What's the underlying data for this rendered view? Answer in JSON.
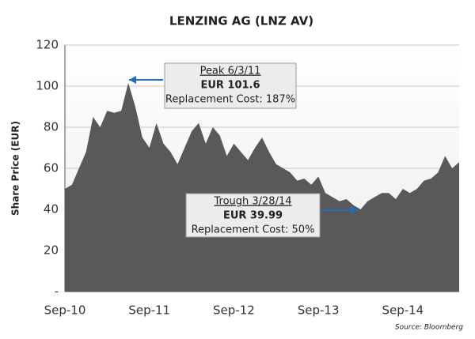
{
  "chart_data": {
    "type": "area",
    "title": "LENZING AG (LNZ AV)",
    "y_label": "Share Price (EUR)",
    "source": "Source: Bloomberg",
    "categories": [
      "Sep-10",
      null,
      null,
      null,
      null,
      null,
      null,
      null,
      null,
      null,
      null,
      null,
      "Sep-11",
      null,
      null,
      null,
      null,
      null,
      null,
      null,
      null,
      null,
      null,
      null,
      "Sep-12",
      null,
      null,
      null,
      null,
      null,
      null,
      null,
      null,
      null,
      null,
      null,
      "Sep-13",
      null,
      null,
      null,
      null,
      null,
      null,
      null,
      null,
      null,
      null,
      null,
      "Sep-14",
      null,
      null,
      null,
      null,
      null,
      null,
      null,
      null
    ],
    "values": [
      50,
      52,
      60,
      68,
      85,
      80,
      88,
      87,
      88,
      101.6,
      90,
      75,
      70,
      82,
      72,
      68,
      62,
      70,
      78,
      82,
      72,
      80,
      76,
      66,
      72,
      68,
      64,
      70,
      75,
      68,
      62,
      60,
      58,
      54,
      55,
      52,
      56,
      48,
      46,
      44,
      45,
      42,
      39.99,
      44,
      46,
      48,
      48,
      45,
      50,
      48,
      50,
      54,
      55,
      58,
      66,
      60,
      63
    ],
    "color": "#595959",
    "ylim": [
      0,
      120
    ],
    "yticks": [
      {
        "value": 0,
        "label": "-"
      },
      20,
      40,
      60,
      80,
      100,
      120
    ],
    "grid": true,
    "annotations": [
      {
        "lines": [
          "Peak 6/3/11",
          "EUR 101.6",
          "Replacement Cost: 187%"
        ]
      },
      {
        "lines": [
          "Trough 3/28/14",
          "EUR 39.99",
          "Replacement Cost: 50%"
        ]
      }
    ]
  }
}
